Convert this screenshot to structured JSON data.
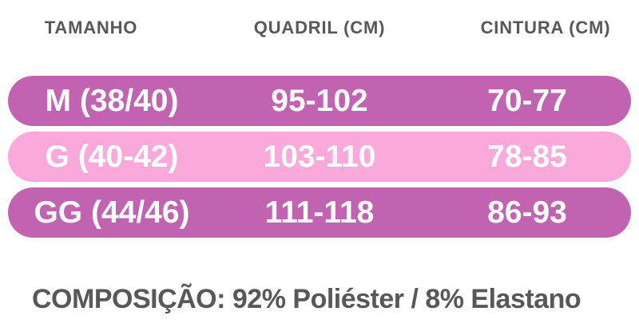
{
  "colors": {
    "row_dark_pink": "#C263B1",
    "row_light_pink": "#FAA9DA",
    "heading_gray": "#58585A",
    "row_text": "#FFFFFF",
    "background": "#FFFFFF"
  },
  "footer": {
    "composition": "COMPOSIÇÃO: 92% Poliéster / 8% Elastano"
  },
  "chart_data": {
    "type": "table",
    "columns": [
      "TAMANHO",
      "QUADRIL (CM)",
      "CINTURA (CM)"
    ],
    "rows": [
      [
        "M (38/40)",
        "95-102",
        "70-77"
      ],
      [
        "G (40-42)",
        "103-110",
        "78-85"
      ],
      [
        "GG (44/46)",
        "111-118",
        "86-93"
      ]
    ],
    "note": "COMPOSIÇÃO: 92% Poliéster / 8% Elastano",
    "layout_hints": {
      "row_backgrounds": [
        "dark-pink",
        "light-pink",
        "dark-pink"
      ],
      "row_shape": "pill",
      "grid": "off",
      "header_position": "top"
    }
  }
}
